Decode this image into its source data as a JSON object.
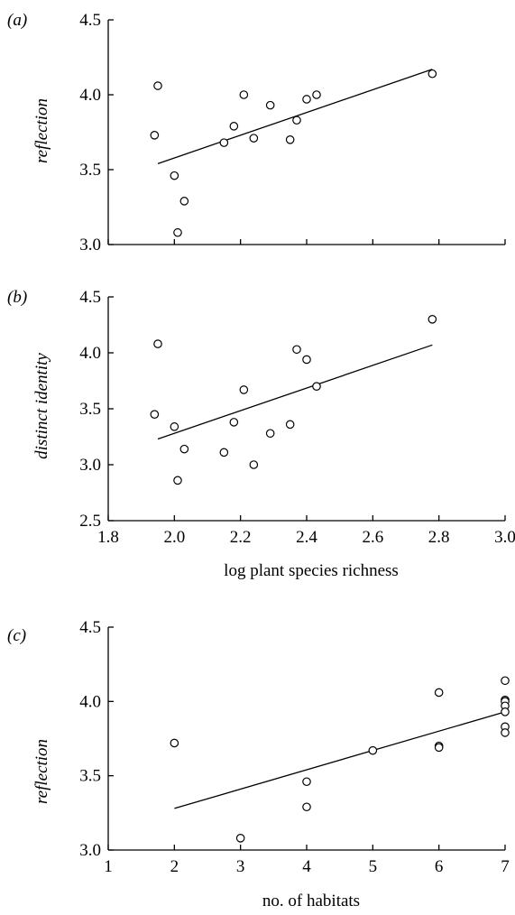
{
  "chart_data": [
    {
      "type": "scatter",
      "panel_label": "(a)",
      "xlabel": "",
      "ylabel": "reflection",
      "xlim": [
        1.8,
        3.0
      ],
      "ylim": [
        3.0,
        4.5
      ],
      "x_ticks": [],
      "y_ticks": [
        "3.0",
        "3.5",
        "4.0",
        "4.5"
      ],
      "points": [
        {
          "x": 1.95,
          "y": 4.06
        },
        {
          "x": 1.94,
          "y": 3.73
        },
        {
          "x": 2.0,
          "y": 3.46
        },
        {
          "x": 2.03,
          "y": 3.29
        },
        {
          "x": 2.01,
          "y": 3.08
        },
        {
          "x": 2.15,
          "y": 3.68
        },
        {
          "x": 2.18,
          "y": 3.79
        },
        {
          "x": 2.21,
          "y": 4.0
        },
        {
          "x": 2.24,
          "y": 3.71
        },
        {
          "x": 2.29,
          "y": 3.93
        },
        {
          "x": 2.35,
          "y": 3.7
        },
        {
          "x": 2.37,
          "y": 3.83
        },
        {
          "x": 2.4,
          "y": 3.97
        },
        {
          "x": 2.43,
          "y": 4.0
        },
        {
          "x": 2.78,
          "y": 4.14
        }
      ],
      "fit": {
        "x": [
          1.95,
          2.78
        ],
        "y": [
          3.54,
          4.17
        ]
      }
    },
    {
      "type": "scatter",
      "panel_label": "(b)",
      "xlabel": "log plant species richness",
      "ylabel": "distinct identity",
      "xlim": [
        1.8,
        3.0
      ],
      "ylim": [
        2.5,
        4.5
      ],
      "x_ticks": [
        "1.8",
        "2.0",
        "2.2",
        "2.4",
        "2.6",
        "2.8",
        "3.0"
      ],
      "y_ticks": [
        "2.5",
        "3.0",
        "3.5",
        "4.0",
        "4.5"
      ],
      "points": [
        {
          "x": 1.95,
          "y": 4.08
        },
        {
          "x": 1.94,
          "y": 3.45
        },
        {
          "x": 2.0,
          "y": 3.34
        },
        {
          "x": 2.03,
          "y": 3.14
        },
        {
          "x": 2.01,
          "y": 2.86
        },
        {
          "x": 2.15,
          "y": 3.11
        },
        {
          "x": 2.18,
          "y": 3.38
        },
        {
          "x": 2.21,
          "y": 3.67
        },
        {
          "x": 2.24,
          "y": 3.0
        },
        {
          "x": 2.29,
          "y": 3.28
        },
        {
          "x": 2.35,
          "y": 3.36
        },
        {
          "x": 2.37,
          "y": 4.03
        },
        {
          "x": 2.4,
          "y": 3.94
        },
        {
          "x": 2.43,
          "y": 3.7
        },
        {
          "x": 2.78,
          "y": 4.3
        }
      ],
      "fit": {
        "x": [
          1.95,
          2.78
        ],
        "y": [
          3.23,
          4.07
        ]
      }
    },
    {
      "type": "scatter",
      "panel_label": "(c)",
      "xlabel": "no. of habitats",
      "ylabel": "reflection",
      "xlim": [
        1,
        7
      ],
      "ylim": [
        3.0,
        4.5
      ],
      "x_ticks": [
        "1",
        "2",
        "3",
        "4",
        "5",
        "6",
        "7"
      ],
      "y_ticks": [
        "3.0",
        "3.5",
        "4.0",
        "4.5"
      ],
      "points": [
        {
          "x": 2,
          "y": 3.72
        },
        {
          "x": 3,
          "y": 3.08
        },
        {
          "x": 4,
          "y": 3.46
        },
        {
          "x": 4,
          "y": 3.29
        },
        {
          "x": 5,
          "y": 3.67
        },
        {
          "x": 6,
          "y": 4.06
        },
        {
          "x": 6,
          "y": 3.7
        },
        {
          "x": 6,
          "y": 3.69
        },
        {
          "x": 7,
          "y": 4.14
        },
        {
          "x": 7,
          "y": 4.01
        },
        {
          "x": 7,
          "y": 4.0
        },
        {
          "x": 7,
          "y": 3.97
        },
        {
          "x": 7,
          "y": 3.93
        },
        {
          "x": 7,
          "y": 3.83
        },
        {
          "x": 7,
          "y": 3.79
        }
      ],
      "fit": {
        "x": [
          2,
          7
        ],
        "y": [
          3.28,
          3.93
        ]
      }
    }
  ]
}
